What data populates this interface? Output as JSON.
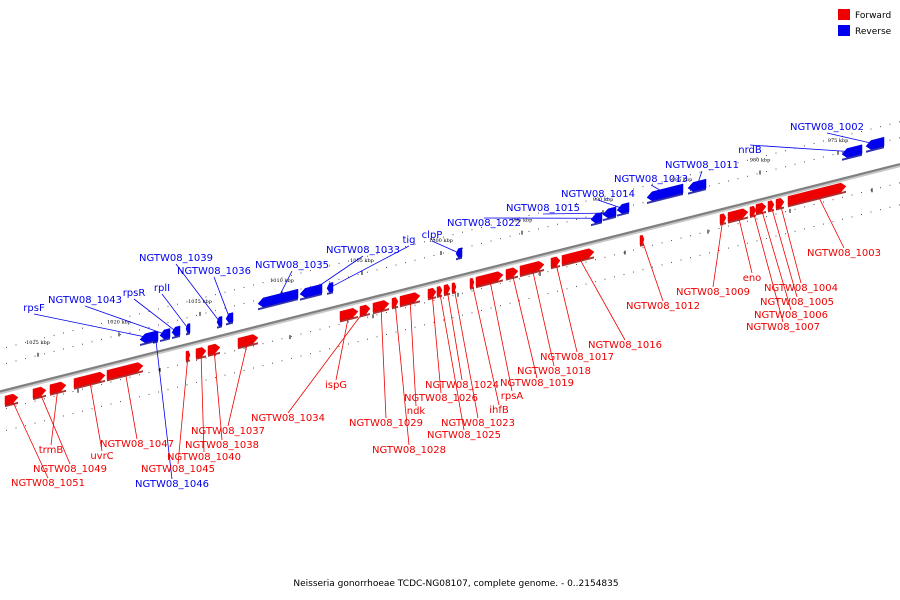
{
  "colors": {
    "forward": "#ee0000",
    "reverse": "#0000ee",
    "axis": "#808080"
  },
  "legend": {
    "forward": "Forward",
    "reverse": "Reverse"
  },
  "caption": "Neisseria gonorrhoeae TCDC-NG08107, complete genome. - 0..2154835",
  "ticks": [
    "975 kbp",
    "980 kbp",
    "985 kbp",
    "990 kbp",
    "995 kbp",
    "1000 kbp",
    "1005 kbp",
    "1010 kbp",
    "1015 kbp",
    "1020 kbp",
    "1025 kbp"
  ],
  "reverse_genes": [
    {
      "name": "NGTW08_1002",
      "label": true
    },
    {
      "name": "nrdB",
      "label": true
    },
    {
      "name": "NGTW08_1011",
      "label": true
    },
    {
      "name": "NGTW08_1013",
      "label": true
    },
    {
      "name": "NGTW08_1014",
      "label": true
    },
    {
      "name": "NGTW08_1015",
      "label": true
    },
    {
      "name": "NGTW08_1022",
      "label": true
    },
    {
      "name": "clpP",
      "label": true
    },
    {
      "name": "tig",
      "label": true
    },
    {
      "name": "NGTW08_1033",
      "label": true
    },
    {
      "name": "NGTW08_1035",
      "label": true
    },
    {
      "name": "NGTW08_1036",
      "label": true
    },
    {
      "name": "NGTW08_1039",
      "label": true
    },
    {
      "name": "rplI",
      "label": true
    },
    {
      "name": "rpsR",
      "label": true
    },
    {
      "name": "NGTW08_1043",
      "label": true
    },
    {
      "name": "rpsF",
      "label": true
    },
    {
      "name": "NGTW08_1046",
      "label": true
    }
  ],
  "forward_genes": [
    "NGTW08_1003",
    "NGTW08_1004",
    "NGTW08_1005",
    "NGTW08_1006",
    "NGTW08_1007",
    "eno",
    "NGTW08_1009",
    "NGTW08_1012",
    "NGTW08_1016",
    "NGTW08_1017",
    "NGTW08_1018",
    "NGTW08_1019",
    "rpsA",
    "ihfB",
    "NGTW08_1023",
    "NGTW08_1024",
    "NGTW08_1025",
    "NGTW08_1026",
    "ndk",
    "NGTW08_1028",
    "NGTW08_1029",
    "ispG",
    "NGTW08_1034",
    "NGTW08_1037",
    "NGTW08_1038",
    "NGTW08_1040",
    "NGTW08_1045",
    "NGTW08_1047",
    "uvrC",
    "trmB",
    "NGTW08_1049",
    "NGTW08_1051"
  ]
}
